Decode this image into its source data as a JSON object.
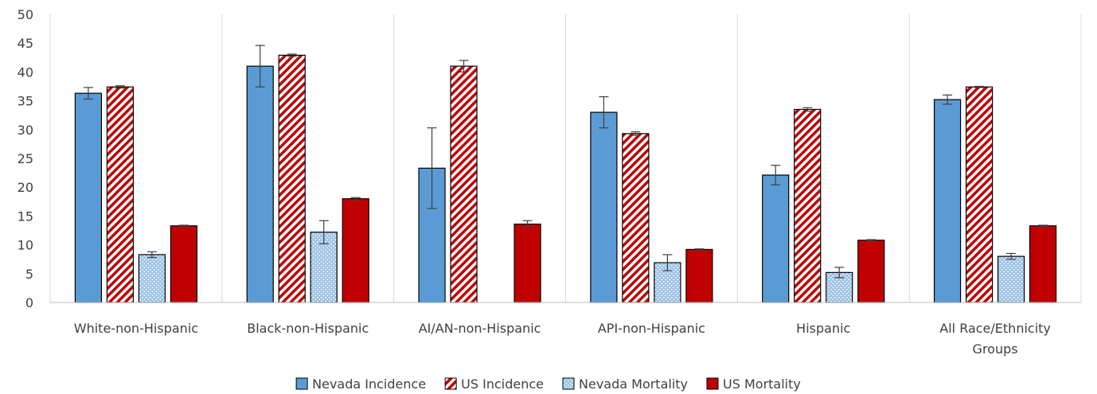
{
  "chart_data": {
    "type": "bar",
    "title": "",
    "xlabel": "",
    "ylabel": "",
    "ylim": [
      0,
      50
    ],
    "yticks": [
      0,
      5,
      10,
      15,
      20,
      25,
      30,
      35,
      40,
      45,
      50
    ],
    "grid": false,
    "legend_position": "bottom",
    "categories": [
      [
        "White-non-Hispanic"
      ],
      [
        "Black-non-Hispanic"
      ],
      [
        "AI/AN-non-Hispanic"
      ],
      [
        "API-non-Hispanic"
      ],
      [
        "Hispanic"
      ],
      [
        "All Race/Ethnicity",
        "Groups"
      ]
    ],
    "series": [
      {
        "name": "Nevada Incidence",
        "pattern": "solid",
        "color": "#5B9BD5",
        "values": [
          36.3,
          41.0,
          23.3,
          33.0,
          22.1,
          35.2
        ],
        "errors": [
          1.0,
          3.6,
          7.0,
          2.7,
          1.7,
          0.8
        ]
      },
      {
        "name": "US Incidence",
        "pattern": "diagonal-stripe",
        "color": "#C00000",
        "values": [
          37.4,
          42.9,
          41.0,
          29.3,
          33.5,
          37.4
        ],
        "errors": [
          0.2,
          0.2,
          1.0,
          0.3,
          0.3,
          0.1
        ]
      },
      {
        "name": "Nevada Mortality",
        "pattern": "dotted",
        "color": "#5B9BD5",
        "values": [
          8.3,
          12.2,
          null,
          6.9,
          5.2,
          8.0
        ],
        "errors": [
          0.5,
          2.0,
          null,
          1.4,
          0.9,
          0.5
        ]
      },
      {
        "name": "US Mortality",
        "pattern": "solid",
        "color": "#C00000",
        "values": [
          13.3,
          18.0,
          13.6,
          9.2,
          10.8,
          13.3
        ],
        "errors": [
          0.1,
          0.2,
          0.6,
          0.1,
          0.1,
          0.1
        ]
      }
    ]
  }
}
